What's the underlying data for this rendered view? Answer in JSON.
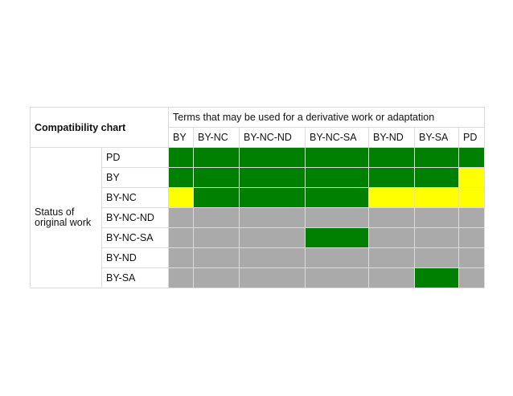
{
  "title": "Compatibility chart",
  "terms_header": "Terms that may be used for a derivative work or adaptation",
  "row_group_label": "Status of original work",
  "columns": [
    "BY",
    "BY-NC",
    "BY-NC-ND",
    "BY-NC-SA",
    "BY-ND",
    "BY-SA",
    "PD"
  ],
  "colors": {
    "green": "#008000",
    "yellow": "#FFFF00",
    "gray": "#AAAAAA"
  },
  "rows": [
    {
      "label": "PD",
      "cells": [
        "green",
        "green",
        "green",
        "green",
        "green",
        "green",
        "green"
      ]
    },
    {
      "label": "BY",
      "cells": [
        "green",
        "green",
        "green",
        "green",
        "green",
        "green",
        "yellow"
      ]
    },
    {
      "label": "BY-NC",
      "cells": [
        "yellow",
        "green",
        "green",
        "green",
        "yellow",
        "yellow",
        "yellow"
      ]
    },
    {
      "label": "BY-NC-ND",
      "cells": [
        "gray",
        "gray",
        "gray",
        "gray",
        "gray",
        "gray",
        "gray"
      ]
    },
    {
      "label": "BY-NC-SA",
      "cells": [
        "gray",
        "gray",
        "gray",
        "green",
        "gray",
        "gray",
        "gray"
      ]
    },
    {
      "label": "BY-ND",
      "cells": [
        "gray",
        "gray",
        "gray",
        "gray",
        "gray",
        "gray",
        "gray"
      ]
    },
    {
      "label": "BY-SA",
      "cells": [
        "gray",
        "gray",
        "gray",
        "gray",
        "gray",
        "green",
        "gray"
      ]
    }
  ]
}
